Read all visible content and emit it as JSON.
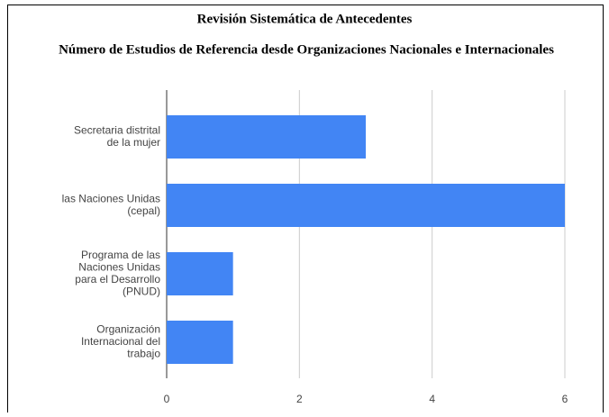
{
  "chart_data": {
    "type": "bar",
    "orientation": "horizontal",
    "title": "Revisión Sistemática de Antecedentes",
    "subtitle": "Número de Estudios de Referencia desde Organizaciones Nacionales e Internacionales",
    "categories": [
      "Secretaria distrital de la mujer",
      "las Naciones Unidas (cepal)",
      "Programa de las Naciones Unidas para el Desarrollo (PNUD)",
      "Organización Internacional del trabajo"
    ],
    "values": [
      3,
      6,
      1,
      1
    ],
    "color": "#4285f4",
    "xlim": [
      0,
      6
    ],
    "xticks": [
      0,
      2,
      4,
      6
    ],
    "grid": true
  }
}
